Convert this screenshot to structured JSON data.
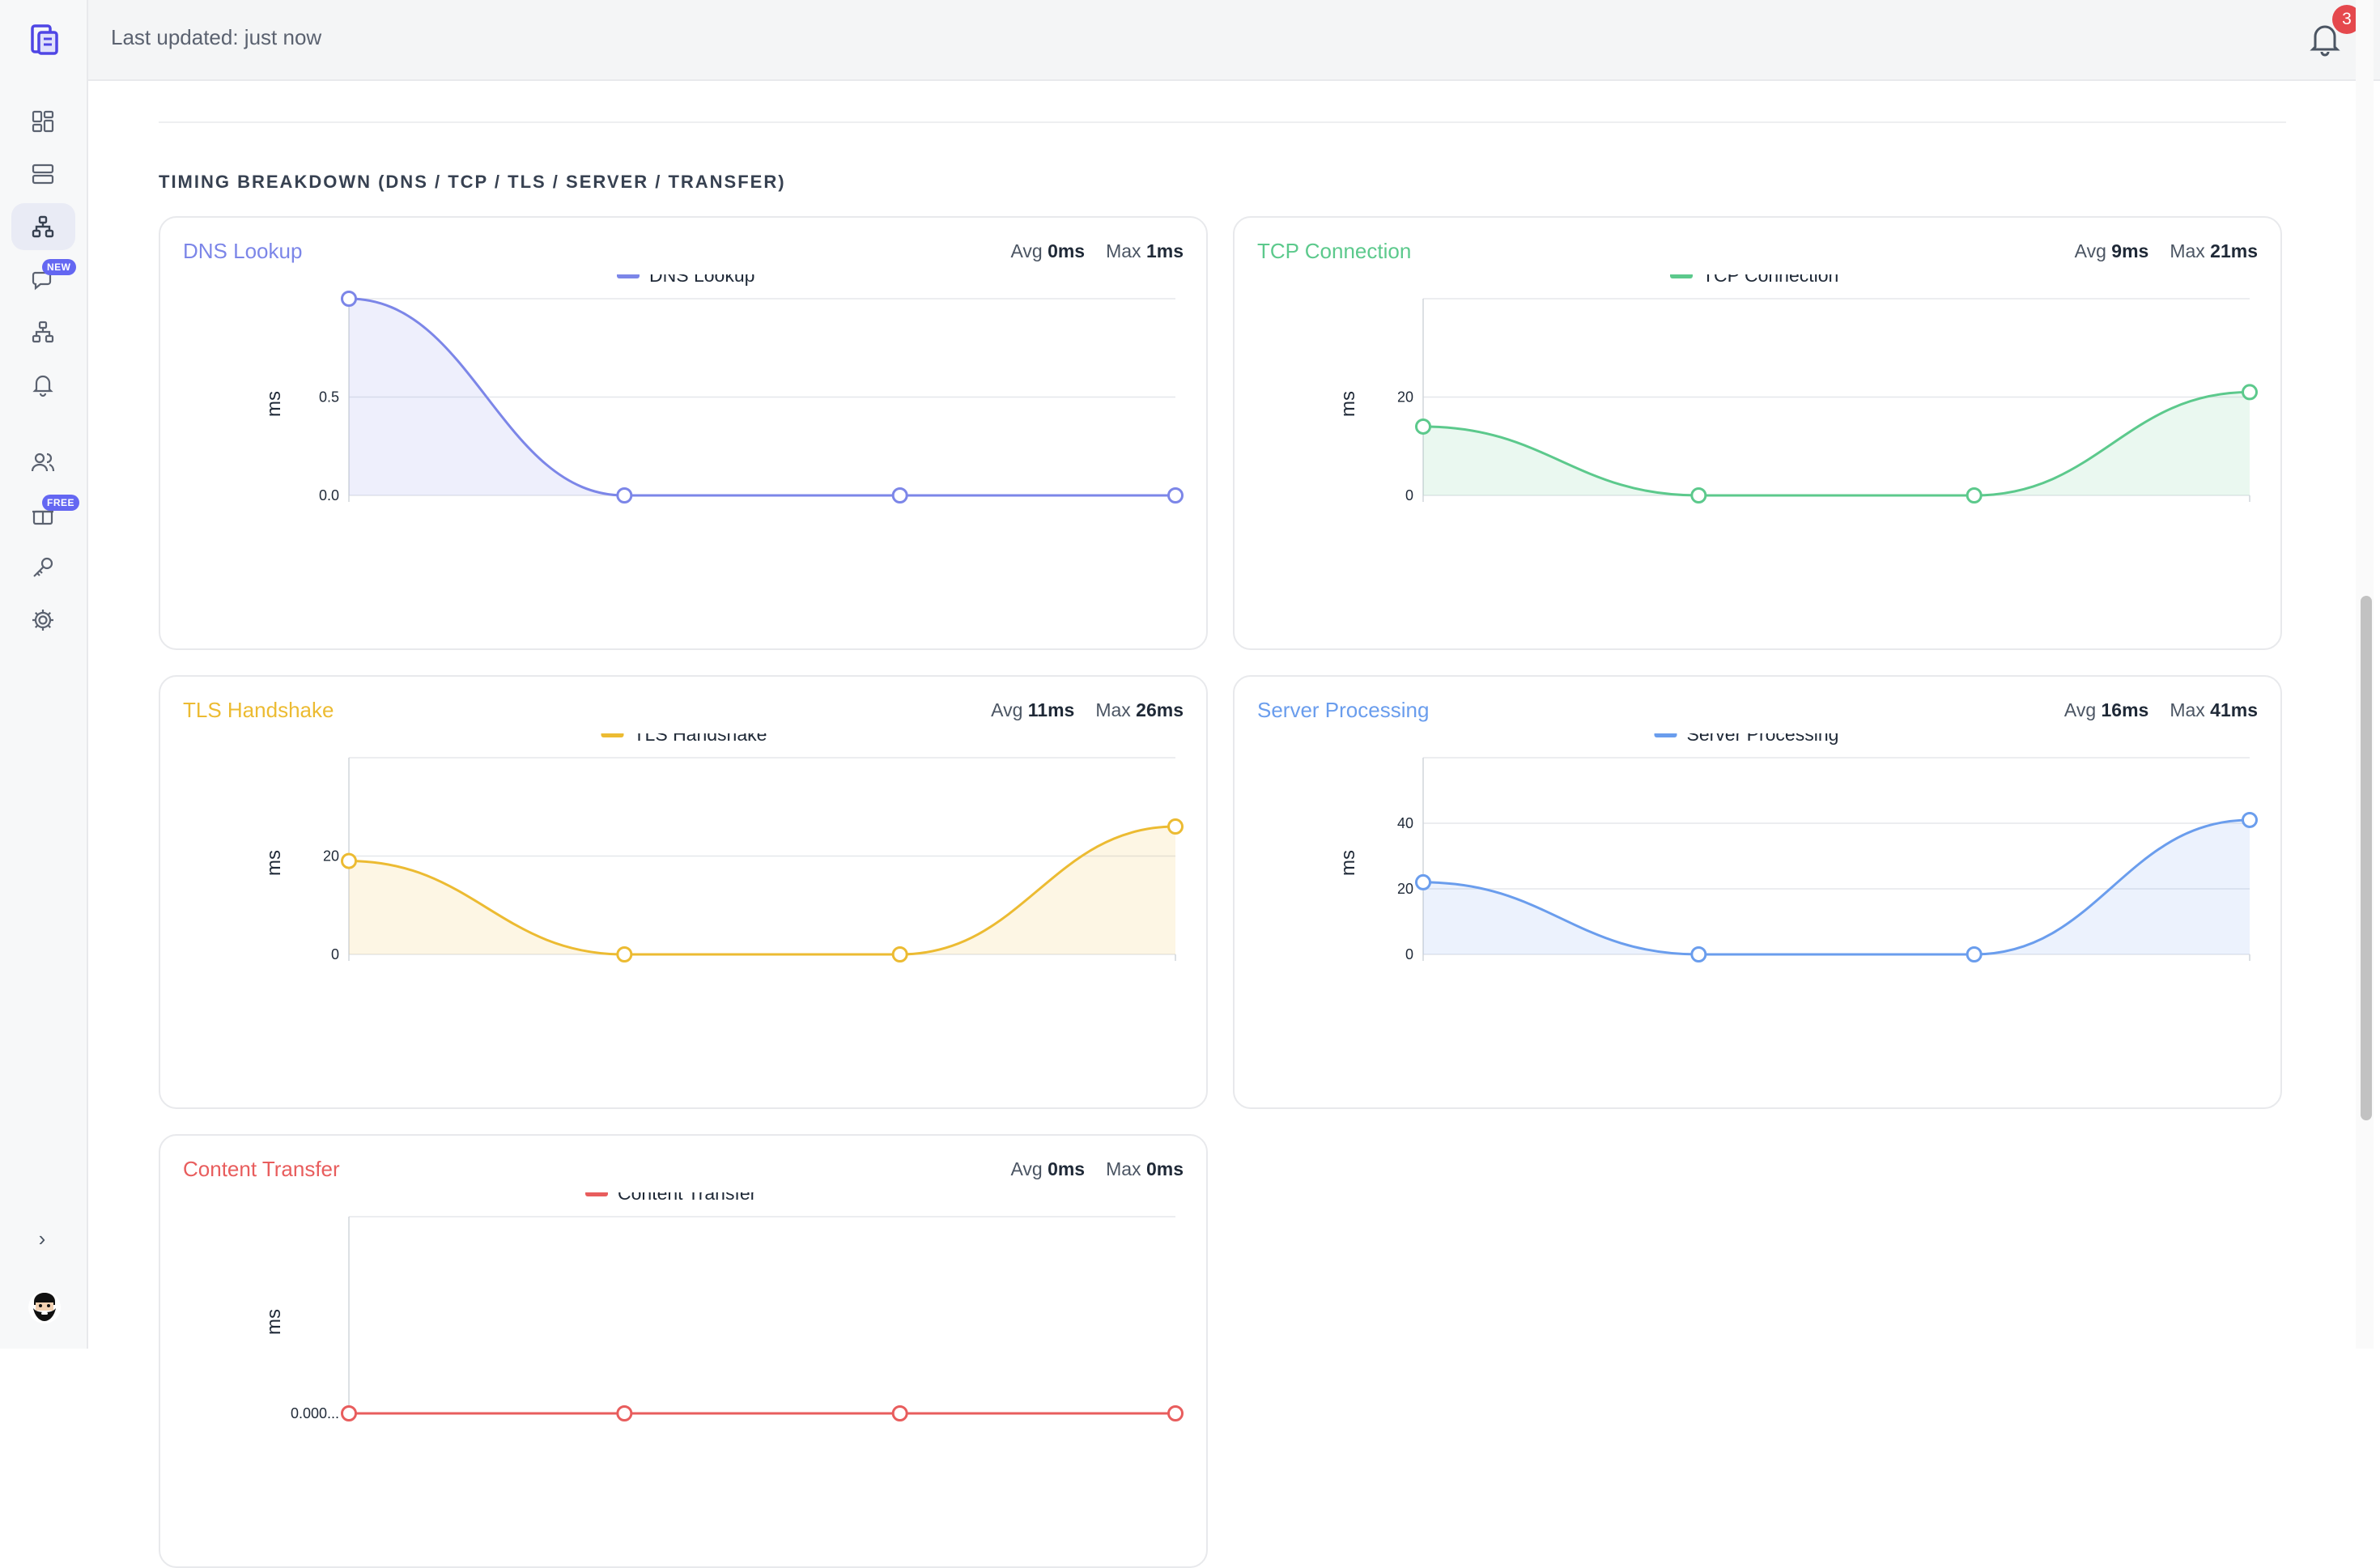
{
  "topbar": {
    "last_updated": "Last updated: just now",
    "notification_count": "3"
  },
  "sidebar": {
    "items": [
      {
        "icon": "dashboard-icon"
      },
      {
        "icon": "server-icon"
      },
      {
        "icon": "network-icon",
        "active": true
      },
      {
        "icon": "chat-icon",
        "badge": "NEW"
      },
      {
        "icon": "sitemap-icon"
      },
      {
        "icon": "bell-icon"
      },
      {
        "icon": "users-icon"
      },
      {
        "icon": "gift-icon",
        "badge": "FREE"
      },
      {
        "icon": "key-icon"
      },
      {
        "icon": "gear-icon"
      }
    ],
    "expand_label": "›"
  },
  "section": {
    "title": "TIMING BREAKDOWN (DNS / TCP / TLS / SERVER / TRANSFER)"
  },
  "cards": [
    {
      "title": "DNS Lookup",
      "avg_label": "Avg",
      "avg": "0ms",
      "max_label": "Max",
      "max": "1ms",
      "color": "#7c86e8"
    },
    {
      "title": "TCP Connection",
      "avg_label": "Avg",
      "avg": "9ms",
      "max_label": "Max",
      "max": "21ms",
      "color": "#5cc98c"
    },
    {
      "title": "TLS Handshake",
      "avg_label": "Avg",
      "avg": "11ms",
      "max_label": "Max",
      "max": "26ms",
      "color": "#ecbb32"
    },
    {
      "title": "Server Processing",
      "avg_label": "Avg",
      "avg": "16ms",
      "max_label": "Max",
      "max": "41ms",
      "color": "#6a9ded"
    },
    {
      "title": "Content Transfer",
      "avg_label": "Avg",
      "avg": "0ms",
      "max_label": "Max",
      "max": "0ms",
      "color": "#e85d5d"
    }
  ],
  "chart_data": [
    {
      "type": "line",
      "title": "",
      "series": [
        {
          "name": "DNS Lookup",
          "values": [
            1,
            0,
            0,
            0
          ]
        }
      ],
      "ylabel": "ms",
      "yticks": [
        "0.0",
        "0.5"
      ],
      "ylim": [
        0,
        1
      ],
      "grid": true,
      "legend": "top-center",
      "area_fill": true
    },
    {
      "type": "line",
      "title": "",
      "series": [
        {
          "name": "TCP Connection",
          "values": [
            14,
            0,
            0,
            21
          ]
        }
      ],
      "ylabel": "ms",
      "yticks": [
        "0",
        "20"
      ],
      "ylim": [
        0,
        40
      ],
      "grid": true,
      "legend": "top-center",
      "area_fill": true
    },
    {
      "type": "line",
      "title": "",
      "series": [
        {
          "name": "TLS Handshake",
          "values": [
            19,
            0,
            0,
            26
          ]
        }
      ],
      "ylabel": "ms",
      "yticks": [
        "0",
        "20"
      ],
      "ylim": [
        0,
        40
      ],
      "grid": true,
      "legend": "top-center",
      "area_fill": true
    },
    {
      "type": "line",
      "title": "",
      "series": [
        {
          "name": "Server Processing",
          "values": [
            22,
            0,
            0,
            41
          ]
        }
      ],
      "ylabel": "ms",
      "yticks": [
        "0",
        "20",
        "40"
      ],
      "ylim": [
        0,
        60
      ],
      "grid": true,
      "legend": "top-center",
      "area_fill": true
    },
    {
      "type": "line",
      "title": "",
      "series": [
        {
          "name": "Content Transfer",
          "values": [
            0,
            0,
            0,
            0
          ]
        }
      ],
      "ylabel": "ms",
      "yticks": [
        "0.000..."
      ],
      "ylim": [
        0,
        1
      ],
      "grid": true,
      "legend": "top-center",
      "area_fill": true
    }
  ]
}
